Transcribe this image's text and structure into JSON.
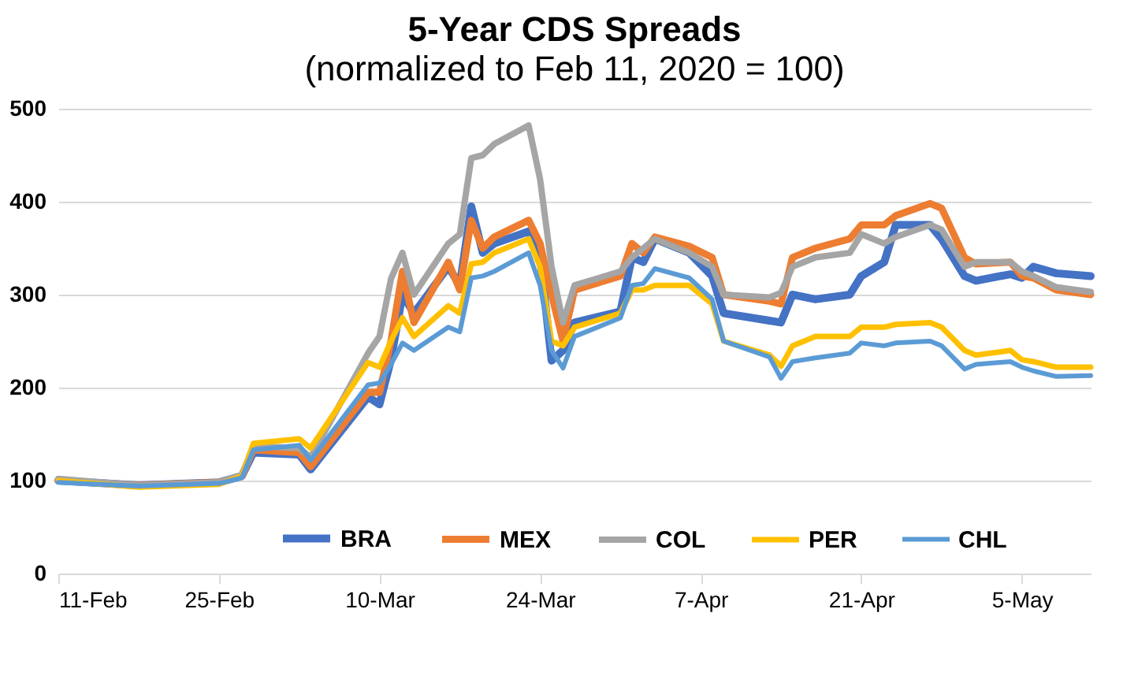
{
  "chart_data": {
    "type": "line",
    "title": "5-Year CDS Spreads",
    "subtitle": "(normalized to Feb 11, 2020 = 100)",
    "x": [
      "2020-02-11",
      "2020-02-18",
      "2020-02-25",
      "2020-02-27",
      "2020-02-28",
      "2020-03-03",
      "2020-03-04",
      "2020-03-09",
      "2020-03-10",
      "2020-03-11",
      "2020-03-12",
      "2020-03-13",
      "2020-03-16",
      "2020-03-17",
      "2020-03-18",
      "2020-03-19",
      "2020-03-20",
      "2020-03-23",
      "2020-03-24",
      "2020-03-25",
      "2020-03-26",
      "2020-03-27",
      "2020-03-31",
      "2020-04-01",
      "2020-04-02",
      "2020-04-03",
      "2020-04-06",
      "2020-04-08",
      "2020-04-09",
      "2020-04-13",
      "2020-04-14",
      "2020-04-15",
      "2020-04-17",
      "2020-04-20",
      "2020-04-21",
      "2020-04-23",
      "2020-04-24",
      "2020-04-27",
      "2020-04-28",
      "2020-04-30",
      "2020-05-01",
      "2020-05-04",
      "2020-05-05",
      "2020-05-06",
      "2020-05-08",
      "2020-05-11"
    ],
    "series": [
      {
        "name": "BRA",
        "color": "#4472c4",
        "values": [
          100,
          95,
          98,
          105,
          130,
          128,
          112,
          190,
          182,
          230,
          300,
          280,
          330,
          310,
          395,
          345,
          355,
          368,
          340,
          229,
          240,
          270,
          282,
          340,
          335,
          360,
          345,
          320,
          280,
          272,
          270,
          300,
          295,
          300,
          320,
          335,
          375,
          375,
          360,
          320,
          315,
          322,
          318,
          330,
          323,
          320
        ]
      },
      {
        "name": "MEX",
        "color": "#ed7d31",
        "values": [
          100,
          95,
          98,
          105,
          133,
          130,
          115,
          195,
          195,
          250,
          325,
          270,
          335,
          305,
          380,
          350,
          362,
          380,
          355,
          300,
          250,
          305,
          320,
          355,
          345,
          362,
          352,
          340,
          300,
          293,
          290,
          340,
          350,
          360,
          375,
          375,
          385,
          398,
          393,
          340,
          333,
          335,
          320,
          318,
          305,
          300
        ]
      },
      {
        "name": "COL",
        "color": "#a5a5a5",
        "values": [
          102,
          95,
          98,
          106,
          137,
          135,
          125,
          237,
          255,
          317,
          345,
          300,
          355,
          365,
          447,
          450,
          462,
          482,
          424,
          330,
          270,
          310,
          325,
          340,
          350,
          360,
          345,
          330,
          300,
          297,
          302,
          330,
          340,
          345,
          365,
          355,
          362,
          375,
          370,
          330,
          335,
          335,
          325,
          320,
          308,
          303
        ]
      },
      {
        "name": "PER",
        "color": "#ffc000",
        "values": [
          100,
          93,
          96,
          105,
          140,
          145,
          135,
          227,
          222,
          250,
          275,
          255,
          288,
          280,
          333,
          335,
          345,
          360,
          330,
          250,
          245,
          265,
          280,
          305,
          305,
          310,
          310,
          290,
          250,
          235,
          223,
          245,
          255,
          255,
          265,
          265,
          268,
          270,
          265,
          240,
          235,
          240,
          230,
          228,
          222,
          222
        ]
      },
      {
        "name": "CHL",
        "color": "#5b9bd5",
        "values": [
          98,
          94,
          97,
          103,
          133,
          138,
          122,
          203,
          205,
          225,
          248,
          240,
          265,
          260,
          318,
          320,
          325,
          345,
          310,
          240,
          221,
          255,
          275,
          310,
          312,
          328,
          318,
          295,
          250,
          233,
          210,
          228,
          232,
          237,
          248,
          245,
          248,
          250,
          245,
          220,
          225,
          228,
          222,
          218,
          212,
          213
        ]
      }
    ],
    "xlim": [
      "2020-02-11",
      "2020-05-11"
    ],
    "xticks": [
      {
        "value": "2020-02-11",
        "label": "11-Feb"
      },
      {
        "value": "2020-02-25",
        "label": "25-Feb"
      },
      {
        "value": "2020-03-10",
        "label": "10-Mar"
      },
      {
        "value": "2020-03-24",
        "label": "24-Mar"
      },
      {
        "value": "2020-04-07",
        "label": "7-Apr"
      },
      {
        "value": "2020-04-21",
        "label": "21-Apr"
      },
      {
        "value": "2020-05-05",
        "label": "5-May"
      }
    ],
    "ylim": [
      0,
      500
    ],
    "yticks": [
      0,
      100,
      200,
      300,
      400,
      500
    ],
    "grid": "y",
    "legend": "bottom",
    "line_style": "solid",
    "marker": "none"
  }
}
